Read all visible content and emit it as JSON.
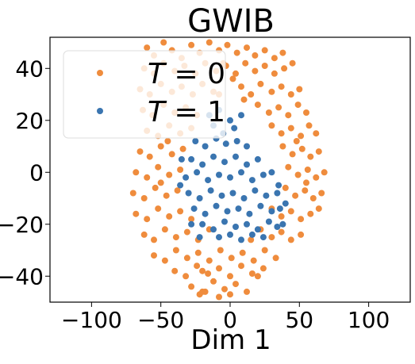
{
  "chart_data": {
    "type": "scatter",
    "title": "GWIB",
    "xlabel": "Dim 1",
    "ylabel": "",
    "xlim": [
      -130,
      130
    ],
    "ylim": [
      -50,
      52
    ],
    "xticks": [
      -100,
      -50,
      0,
      50,
      100
    ],
    "yticks": [
      -40,
      -20,
      0,
      20,
      40
    ],
    "xtick_labels": [
      "−100",
      "−50",
      "0",
      "50",
      "100"
    ],
    "ytick_labels": [
      "−40",
      "−20",
      "0",
      "20",
      "40"
    ],
    "legend_position": "top-left",
    "grid": false,
    "colors": {
      "t0": "#ef8c3d",
      "t1": "#3a75b0"
    },
    "series": [
      {
        "name": "T = 0",
        "legend_var": "T",
        "legend_value": "0",
        "color": "#ef8c3d",
        "points": [
          [
            -60,
            48
          ],
          [
            -55,
            45
          ],
          [
            -48,
            50
          ],
          [
            -42,
            47
          ],
          [
            -35,
            44
          ],
          [
            -28,
            49
          ],
          [
            -22,
            46
          ],
          [
            -15,
            50
          ],
          [
            -8,
            47
          ],
          [
            -2,
            49
          ],
          [
            5,
            46
          ],
          [
            12,
            48
          ],
          [
            18,
            45
          ],
          [
            25,
            47
          ],
          [
            32,
            44
          ],
          [
            38,
            46
          ],
          [
            -62,
            40
          ],
          [
            -55,
            38
          ],
          [
            -48,
            42
          ],
          [
            -40,
            39
          ],
          [
            -33,
            41
          ],
          [
            -25,
            38
          ],
          [
            -18,
            42
          ],
          [
            -10,
            39
          ],
          [
            -3,
            41
          ],
          [
            4,
            38
          ],
          [
            11,
            42
          ],
          [
            18,
            39
          ],
          [
            25,
            41
          ],
          [
            32,
            38
          ],
          [
            39,
            40
          ],
          [
            45,
            42
          ],
          [
            -65,
            32
          ],
          [
            -58,
            30
          ],
          [
            -50,
            34
          ],
          [
            -42,
            31
          ],
          [
            -35,
            33
          ],
          [
            -27,
            30
          ],
          [
            -20,
            34
          ],
          [
            -12,
            31
          ],
          [
            8,
            33
          ],
          [
            15,
            30
          ],
          [
            22,
            34
          ],
          [
            30,
            31
          ],
          [
            37,
            33
          ],
          [
            44,
            30
          ],
          [
            50,
            32
          ],
          [
            -63,
            24
          ],
          [
            -56,
            22
          ],
          [
            -48,
            26
          ],
          [
            -40,
            23
          ],
          [
            -32,
            25
          ],
          [
            -24,
            22
          ],
          [
            20,
            26
          ],
          [
            28,
            23
          ],
          [
            35,
            25
          ],
          [
            42,
            22
          ],
          [
            49,
            26
          ],
          [
            55,
            23
          ],
          [
            -60,
            16
          ],
          [
            -52,
            14
          ],
          [
            -44,
            18
          ],
          [
            -36,
            15
          ],
          [
            -28,
            17
          ],
          [
            30,
            18
          ],
          [
            37,
            15
          ],
          [
            44,
            17
          ],
          [
            51,
            14
          ],
          [
            57,
            18
          ],
          [
            62,
            15
          ],
          [
            -65,
            8
          ],
          [
            -58,
            6
          ],
          [
            -50,
            10
          ],
          [
            -42,
            7
          ],
          [
            -34,
            9
          ],
          [
            38,
            10
          ],
          [
            45,
            7
          ],
          [
            52,
            9
          ],
          [
            58,
            6
          ],
          [
            64,
            8
          ],
          [
            -68,
            0
          ],
          [
            -60,
            -2
          ],
          [
            -52,
            2
          ],
          [
            -44,
            -1
          ],
          [
            -36,
            1
          ],
          [
            42,
            2
          ],
          [
            49,
            -1
          ],
          [
            56,
            1
          ],
          [
            62,
            -2
          ],
          [
            68,
            0
          ],
          [
            -70,
            -8
          ],
          [
            -62,
            -10
          ],
          [
            -54,
            -6
          ],
          [
            -46,
            -9
          ],
          [
            -38,
            -7
          ],
          [
            40,
            -6
          ],
          [
            47,
            -9
          ],
          [
            54,
            -7
          ],
          [
            60,
            -10
          ],
          [
            66,
            -8
          ],
          [
            -68,
            -16
          ],
          [
            -60,
            -18
          ],
          [
            -52,
            -14
          ],
          [
            -44,
            -17
          ],
          [
            -36,
            -15
          ],
          [
            -28,
            -18
          ],
          [
            30,
            -14
          ],
          [
            37,
            -17
          ],
          [
            44,
            -15
          ],
          [
            51,
            -18
          ],
          [
            58,
            -16
          ],
          [
            64,
            -14
          ],
          [
            -62,
            -24
          ],
          [
            -55,
            -26
          ],
          [
            -47,
            -22
          ],
          [
            -39,
            -25
          ],
          [
            -31,
            -23
          ],
          [
            -23,
            -26
          ],
          [
            -15,
            -22
          ],
          [
            15,
            -26
          ],
          [
            22,
            -22
          ],
          [
            30,
            -25
          ],
          [
            37,
            -23
          ],
          [
            44,
            -26
          ],
          [
            51,
            -24
          ],
          [
            -55,
            -32
          ],
          [
            -47,
            -34
          ],
          [
            -39,
            -30
          ],
          [
            -31,
            -33
          ],
          [
            -23,
            -31
          ],
          [
            -15,
            -34
          ],
          [
            -7,
            -30
          ],
          [
            1,
            -33
          ],
          [
            9,
            -31
          ],
          [
            17,
            -34
          ],
          [
            25,
            -30
          ],
          [
            33,
            -33
          ],
          [
            -40,
            -38
          ],
          [
            -32,
            -40
          ],
          [
            -24,
            -36
          ],
          [
            -16,
            -39
          ],
          [
            -8,
            -37
          ],
          [
            0,
            -40
          ],
          [
            8,
            -36
          ],
          [
            16,
            -39
          ],
          [
            24,
            -37
          ],
          [
            -28,
            -44
          ],
          [
            -20,
            -46
          ],
          [
            -12,
            -42
          ],
          [
            -4,
            -45
          ],
          [
            4,
            -43
          ],
          [
            12,
            -46
          ],
          [
            -22,
            -47
          ],
          [
            -18,
            -46
          ],
          [
            -8,
            -48
          ],
          [
            0,
            -47
          ],
          [
            -5,
            42
          ],
          [
            2,
            36
          ],
          [
            -8,
            30
          ],
          [
            10,
            28
          ],
          [
            -45,
            12
          ],
          [
            48,
            12
          ],
          [
            -50,
            -4
          ],
          [
            55,
            -4
          ],
          [
            -20,
            -38
          ],
          [
            20,
            -40
          ]
        ]
      },
      {
        "name": "T = 1",
        "legend_var": "T",
        "legend_value": "1",
        "color": "#3a75b0",
        "points": [
          [
            -15,
            22
          ],
          [
            -8,
            24
          ],
          [
            0,
            20
          ],
          [
            -12,
            18
          ],
          [
            -5,
            15
          ],
          [
            3,
            17
          ],
          [
            8,
            22
          ],
          [
            -25,
            12
          ],
          [
            -18,
            10
          ],
          [
            -10,
            13
          ],
          [
            -3,
            11
          ],
          [
            5,
            12
          ],
          [
            12,
            10
          ],
          [
            -28,
            5
          ],
          [
            -20,
            3
          ],
          [
            -12,
            6
          ],
          [
            -4,
            4
          ],
          [
            4,
            6
          ],
          [
            12,
            3
          ],
          [
            20,
            5
          ],
          [
            -32,
            -2
          ],
          [
            -24,
            0
          ],
          [
            -16,
            -3
          ],
          [
            -8,
            -1
          ],
          [
            0,
            -2
          ],
          [
            8,
            0
          ],
          [
            16,
            -3
          ],
          [
            24,
            -1
          ],
          [
            30,
            0
          ],
          [
            -30,
            -8
          ],
          [
            -22,
            -10
          ],
          [
            -14,
            -7
          ],
          [
            -6,
            -9
          ],
          [
            2,
            -8
          ],
          [
            10,
            -10
          ],
          [
            18,
            -7
          ],
          [
            26,
            -9
          ],
          [
            34,
            -8
          ],
          [
            -26,
            -14
          ],
          [
            -18,
            -16
          ],
          [
            -10,
            -13
          ],
          [
            -2,
            -15
          ],
          [
            6,
            -14
          ],
          [
            14,
            -16
          ],
          [
            22,
            -13
          ],
          [
            30,
            -15
          ],
          [
            36,
            -14
          ],
          [
            -20,
            -20
          ],
          [
            -12,
            -22
          ],
          [
            -4,
            -19
          ],
          [
            4,
            -21
          ],
          [
            12,
            -20
          ],
          [
            20,
            -22
          ],
          [
            28,
            -19
          ],
          [
            34,
            -21
          ],
          [
            -8,
            -25
          ],
          [
            0,
            -24
          ],
          [
            8,
            -26
          ],
          [
            16,
            -24
          ],
          [
            24,
            -25
          ],
          [
            -35,
            5
          ],
          [
            -36,
            -5
          ],
          [
            35,
            -5
          ],
          [
            40,
            -12
          ],
          [
            38,
            -20
          ],
          [
            -28,
            -20
          ],
          [
            -22,
            -25
          ]
        ]
      }
    ]
  }
}
